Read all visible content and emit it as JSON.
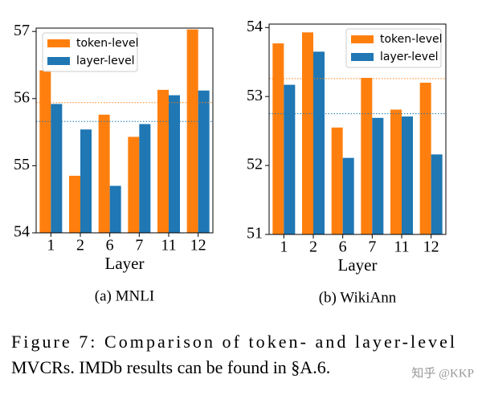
{
  "chart_data": [
    {
      "type": "bar",
      "subcaption": "(a) MNLI",
      "xlabel": "Layer",
      "categories": [
        "1",
        "2",
        "6",
        "7",
        "11",
        "12"
      ],
      "series": [
        {
          "name": "token-level",
          "color": "#ff7f0e",
          "values": [
            56.42,
            54.85,
            55.76,
            55.43,
            56.13,
            57.03
          ]
        },
        {
          "name": "layer-level",
          "color": "#1f77b4",
          "values": [
            55.92,
            55.54,
            54.7,
            55.62,
            56.05,
            56.12
          ]
        }
      ],
      "hlines": [
        {
          "value": 55.94,
          "color": "#ff7f0e"
        },
        {
          "value": 55.66,
          "color": "#1f77b4"
        }
      ],
      "ylim": [
        54,
        57.05
      ],
      "yticks": [
        54,
        55,
        56,
        57
      ],
      "legend": "upper left"
    },
    {
      "type": "bar",
      "subcaption": "(b) WikiAnn",
      "xlabel": "Layer",
      "categories": [
        "1",
        "2",
        "6",
        "7",
        "11",
        "12"
      ],
      "series": [
        {
          "name": "token-level",
          "color": "#ff7f0e",
          "values": [
            53.77,
            53.93,
            52.55,
            53.27,
            52.81,
            53.2
          ]
        },
        {
          "name": "layer-level",
          "color": "#1f77b4",
          "values": [
            53.17,
            53.65,
            52.11,
            52.69,
            52.71,
            52.16
          ]
        }
      ],
      "hlines": [
        {
          "value": 53.26,
          "color": "#ff7f0e"
        },
        {
          "value": 52.75,
          "color": "#1f77b4"
        }
      ],
      "ylim": [
        51,
        54.05
      ],
      "yticks": [
        51,
        52,
        53,
        54
      ],
      "legend": "upper right"
    }
  ],
  "caption": [
    "Figure 7:  Comparison of token- and layer-level",
    "MVCRs. IMDb results can be found in §A.6."
  ],
  "watermark": "知乎 @KKP"
}
